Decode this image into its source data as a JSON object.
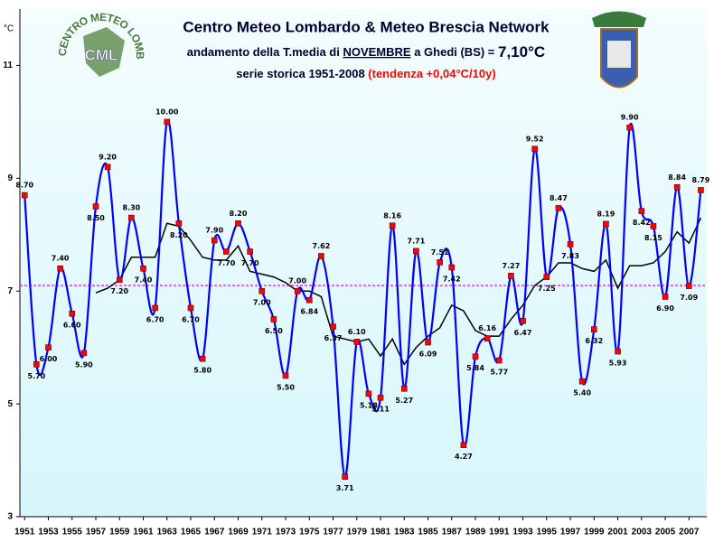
{
  "chart_data": {
    "type": "line",
    "title": "Centro Meteo Lombardo & Meteo Brescia Network",
    "subtitle": {
      "pre": "andamento della T.media di ",
      "month": "NOVEMBRE",
      "mid": " a Ghedi (BS) = ",
      "mean_text": "7,10°C"
    },
    "subtitle2": {
      "pre": "serie storica 1951-2008 ",
      "trend": "(tendenza +0,04°C/10y)"
    },
    "y_unit": "°C",
    "logo_text": "CENTRO METEO LOMBARDO",
    "logo_abbr": "CML",
    "x": [
      1951,
      1952,
      1953,
      1954,
      1955,
      1956,
      1957,
      1958,
      1959,
      1960,
      1961,
      1962,
      1963,
      1964,
      1965,
      1966,
      1967,
      1968,
      1969,
      1970,
      1971,
      1972,
      1973,
      1974,
      1975,
      1976,
      1977,
      1978,
      1979,
      1980,
      1981,
      1982,
      1983,
      1984,
      1985,
      1986,
      1987,
      1988,
      1989,
      1990,
      1991,
      1992,
      1993,
      1994,
      1995,
      1996,
      1997,
      1998,
      1999,
      2000,
      2001,
      2002,
      2003,
      2004,
      2005,
      2006,
      2007,
      2008
    ],
    "series": [
      {
        "color": "#0000ff",
        "values": [
          8.7,
          5.7,
          6.0,
          7.4,
          6.6,
          5.9,
          8.5,
          9.2,
          7.2,
          8.3,
          7.4,
          6.7,
          10.0,
          8.2,
          6.7,
          5.8,
          7.9,
          7.7,
          8.2,
          7.7,
          7.0,
          6.5,
          5.5,
          7.0,
          6.84,
          7.62,
          6.37,
          3.71,
          6.1,
          5.18,
          5.11,
          8.16,
          5.27,
          7.71,
          6.09,
          7.51,
          7.42,
          4.27,
          5.84,
          6.16,
          5.77,
          7.27,
          6.47,
          9.52,
          7.25,
          8.47,
          7.83,
          5.4,
          6.32,
          8.19,
          5.93,
          9.9,
          8.42,
          8.15,
          6.9,
          8.84,
          7.09,
          8.79
        ],
        "value_labels": [
          "8.70",
          "5.70",
          "6.00",
          "7.40",
          "6.60",
          "5.90",
          "8.50",
          "9.20",
          "7.20",
          "8.30",
          "7.40",
          "6.70",
          "10.00",
          "8.20",
          "6.70",
          "5.80",
          "7.90",
          "7.70",
          "8.20",
          "7.70",
          "7.00",
          "6.50",
          "5.50",
          "7.00",
          "6.84",
          "7.62",
          "6.37",
          "3.71",
          "6.10",
          "5.18",
          "5.11",
          "8.16",
          "5.27",
          "7.71",
          "6.09",
          "7.51",
          "7.42",
          "4.27",
          "5.84",
          "6.16",
          "5.77",
          "7.27",
          "6.47",
          "9.52",
          "7.25",
          "8.47",
          "7.83",
          "5.40",
          "6.32",
          "8.19",
          "5.93",
          "9.90",
          "8.42",
          "8.15",
          "6.90",
          "8.84",
          "7.09",
          "8.79"
        ]
      },
      {
        "color": "#000000",
        "values": [
          null,
          null,
          null,
          null,
          null,
          null,
          6.97,
          7.05,
          7.2,
          7.6,
          7.6,
          7.6,
          8.2,
          8.15,
          7.9,
          7.6,
          7.55,
          7.55,
          7.8,
          7.35,
          7.3,
          7.25,
          7.15,
          7.0,
          7.0,
          6.9,
          6.2,
          6.15,
          6.1,
          6.15,
          5.85,
          6.15,
          5.7,
          6.0,
          6.2,
          6.35,
          6.75,
          6.65,
          6.3,
          6.2,
          6.2,
          6.5,
          6.75,
          7.1,
          7.25,
          7.5,
          7.5,
          7.4,
          7.35,
          7.55,
          7.05,
          7.45,
          7.45,
          7.5,
          7.7,
          8.05,
          7.85,
          8.3
        ]
      }
    ],
    "mean_line": {
      "value": 7.1,
      "color": "#ff00ff"
    },
    "xlim": [
      1950.6,
      2008.5
    ],
    "xticks": [
      1951,
      1953,
      1955,
      1957,
      1959,
      1961,
      1963,
      1965,
      1967,
      1969,
      1971,
      1973,
      1975,
      1977,
      1979,
      1981,
      1983,
      1985,
      1987,
      1989,
      1991,
      1993,
      1995,
      1997,
      1999,
      2001,
      2003,
      2005,
      2007
    ],
    "ylim": [
      3,
      12
    ],
    "yticks": [
      3,
      5,
      7,
      9,
      11
    ]
  }
}
